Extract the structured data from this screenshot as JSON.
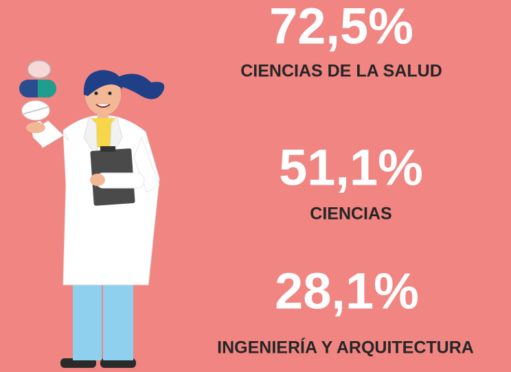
{
  "stats": [
    {
      "value": "72,5%",
      "label": "CIENCIAS DE LA SALUD"
    },
    {
      "value": "51,1%",
      "label": "CIENCIAS"
    },
    {
      "value": "28,1%",
      "label": "INGENIERÍA Y ARQUITECTURA"
    }
  ]
}
